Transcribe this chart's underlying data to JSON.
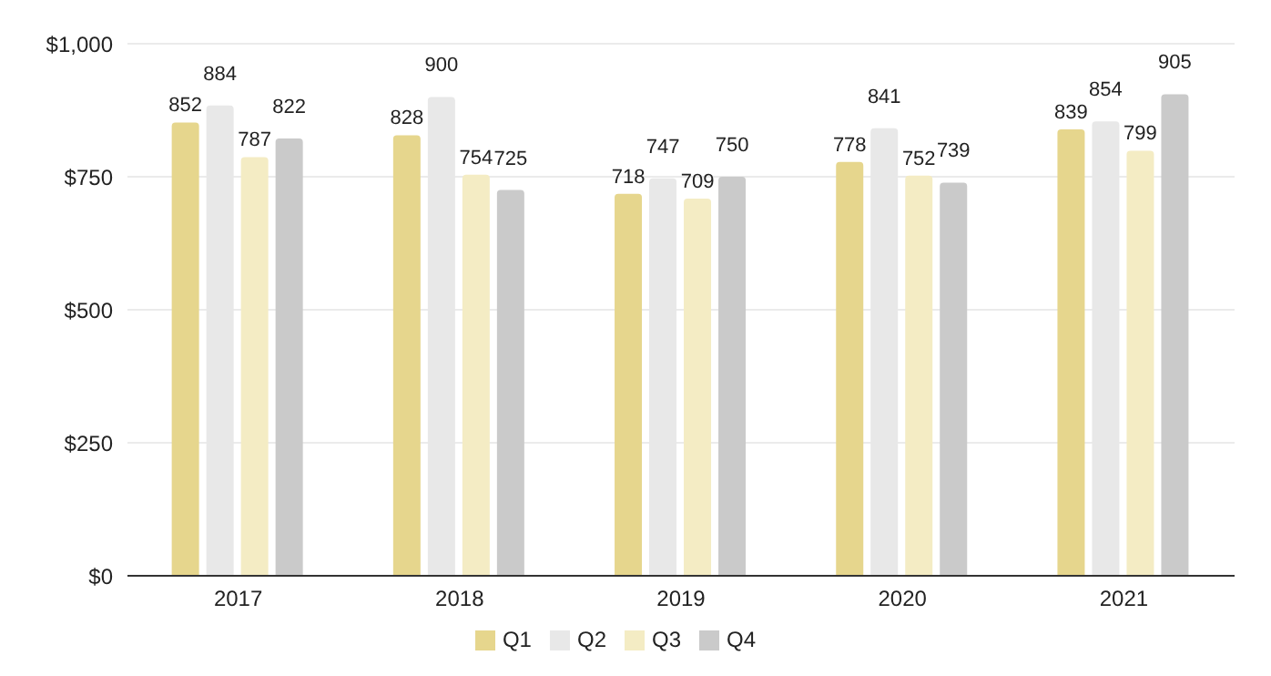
{
  "chart_data": {
    "type": "bar",
    "categories": [
      "2017",
      "2018",
      "2019",
      "2020",
      "2021"
    ],
    "series": [
      {
        "name": "Q1",
        "color": "#e6d68d",
        "values": [
          852,
          828,
          718,
          778,
          839
        ]
      },
      {
        "name": "Q2",
        "color": "#e8e8e8",
        "values": [
          884,
          900,
          747,
          841,
          854
        ]
      },
      {
        "name": "Q3",
        "color": "#f4ecc4",
        "values": [
          787,
          754,
          709,
          752,
          799
        ]
      },
      {
        "name": "Q4",
        "color": "#cacaca",
        "values": [
          822,
          725,
          750,
          739,
          905
        ]
      }
    ],
    "ylim": [
      0,
      1000
    ],
    "yticks": [
      {
        "value": 0,
        "label": "$0"
      },
      {
        "value": 250,
        "label": "$250"
      },
      {
        "value": 500,
        "label": "$500"
      },
      {
        "value": 750,
        "label": "$750"
      },
      {
        "value": 1000,
        "label": "$1,000"
      }
    ],
    "grid": "y",
    "legend": "bottom",
    "data_labels": true
  }
}
